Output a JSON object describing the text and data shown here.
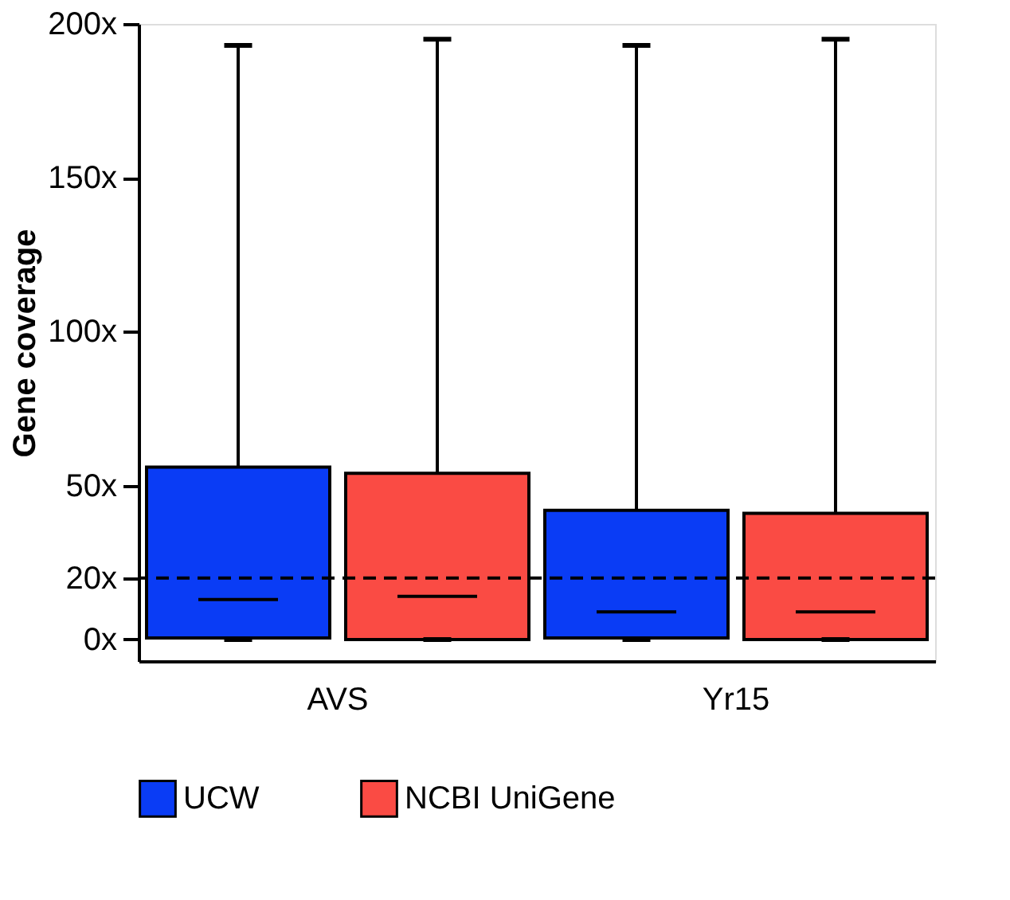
{
  "chart_data": {
    "type": "box",
    "ylabel": "Gene coverage",
    "categories": [
      "AVS",
      "Yr15"
    ],
    "series": [
      {
        "name": "UCW",
        "color": "#0a3cf5",
        "boxes": [
          {
            "low": 0,
            "q1": 0.5,
            "median": 13,
            "q3": 56,
            "high": 193
          },
          {
            "low": 0,
            "q1": 0.5,
            "median": 9,
            "q3": 42,
            "high": 193
          }
        ]
      },
      {
        "name": "NCBI UniGene",
        "color": "#fa4b44",
        "boxes": [
          {
            "low": 0,
            "q1": 0,
            "median": 14,
            "q3": 54,
            "high": 195
          },
          {
            "low": 0,
            "q1": 0,
            "median": 9,
            "q3": 41,
            "high": 195
          }
        ]
      }
    ],
    "ylim": [
      -7,
      200
    ],
    "yticks": [
      {
        "value": 0,
        "label": "0x"
      },
      {
        "value": 20,
        "label": "20x"
      },
      {
        "value": 50,
        "label": "50x"
      },
      {
        "value": 100,
        "label": "100x"
      },
      {
        "value": 150,
        "label": "150x"
      },
      {
        "value": 200,
        "label": "200x"
      }
    ],
    "ref_lines": [
      {
        "axis": "y",
        "value": 20,
        "line_style": "dashed",
        "color": "#000000"
      }
    ],
    "grid": false,
    "legend": "bottom"
  }
}
